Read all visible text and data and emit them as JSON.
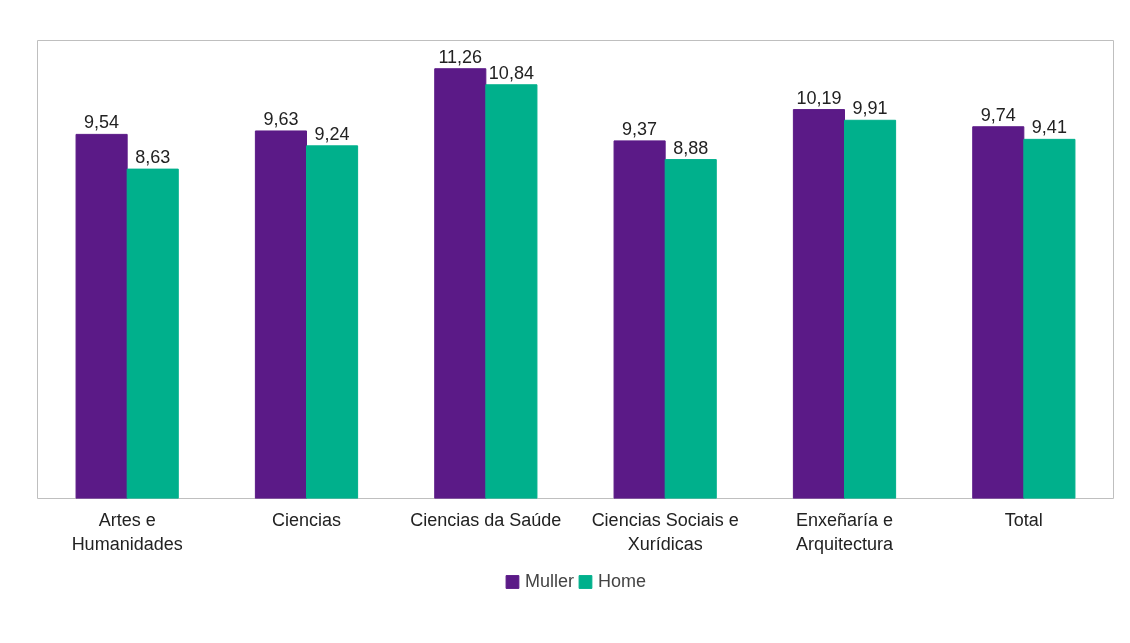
{
  "chart_data": {
    "type": "bar",
    "categories": [
      "Artes e Humanidades",
      "Ciencias",
      "Ciencias da Saúde",
      "Ciencias Sociais e Xurídicas",
      "Enxeñaría e Arquitectura",
      "Total"
    ],
    "series": [
      {
        "name": "Muller",
        "color": "#5b1a87",
        "values": [
          9.54,
          9.63,
          11.26,
          9.37,
          10.19,
          9.74
        ],
        "value_labels": [
          "9,54",
          "9,63",
          "11,26",
          "9,37",
          "10,19",
          "9,74"
        ]
      },
      {
        "name": "Home",
        "color": "#00b08c",
        "values": [
          8.63,
          9.24,
          10.84,
          8.88,
          9.91,
          9.41
        ],
        "value_labels": [
          "8,63",
          "9,24",
          "10,84",
          "8,88",
          "9,91",
          "9,41"
        ]
      }
    ],
    "ylim": [
      0,
      12
    ],
    "tick_labels": "x",
    "grid": false,
    "legend": "bottom"
  }
}
